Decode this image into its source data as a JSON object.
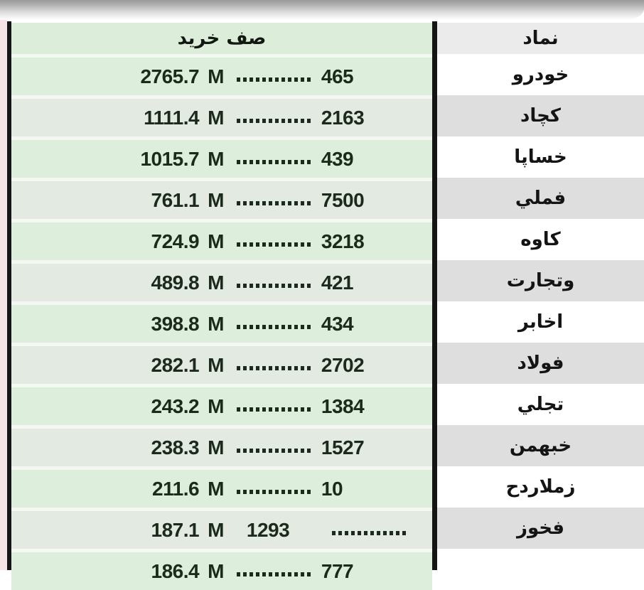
{
  "header": {
    "buy_queue_label": "صف خريد",
    "symbol_label": "نماد"
  },
  "unit_label": "M",
  "leader_dots": "...............",
  "rows": [
    {
      "value": "2765.7",
      "count": "465",
      "symbol": "خودرو"
    },
    {
      "value": "1111.4",
      "count": "2163",
      "symbol": "كچاد"
    },
    {
      "value": "1015.7",
      "count": "439",
      "symbol": "خساپا"
    },
    {
      "value": "761.1",
      "count": "7500",
      "symbol": "فملي"
    },
    {
      "value": "724.9",
      "count": "3218",
      "symbol": "كاوه"
    },
    {
      "value": "489.8",
      "count": "421",
      "symbol": "وتجارت"
    },
    {
      "value": "398.8",
      "count": "434",
      "symbol": "اخابر"
    },
    {
      "value": "282.1",
      "count": "2702",
      "symbol": "فولاد"
    },
    {
      "value": "243.2",
      "count": "1384",
      "symbol": "تجلي"
    },
    {
      "value": "238.3",
      "count": "1527",
      "symbol": "خبهمن"
    },
    {
      "value": "211.6",
      "count": "10",
      "symbol": "زملاردح"
    },
    {
      "value": "187.1",
      "count": "1293",
      "symbol": "فخوز"
    },
    {
      "value": "186.4",
      "count": "777",
      "symbol": "",
      "partial": true
    }
  ],
  "colors": {
    "row_green_light": "#ddefdc",
    "row_green_dark": "#e2eae1",
    "row_gray": "#dedede",
    "row_white": "#ffffff",
    "header_green": "#dcedda",
    "header_gray": "#ebebeb",
    "pink_edge": "#f7e2e6",
    "border_black": "#151515",
    "text_dark": "#1c2a1c"
  }
}
